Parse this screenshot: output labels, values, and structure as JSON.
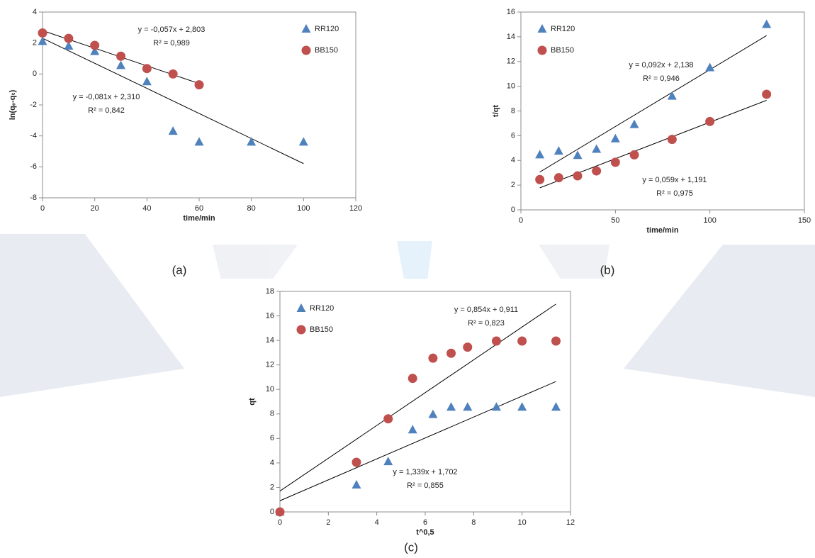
{
  "chart_data": [
    {
      "type": "scatter",
      "caption": "(a)",
      "x_label": "time/min",
      "y_label": "ln(qₑ-qₜ)",
      "xlim": [
        0,
        120
      ],
      "xticks": [
        0,
        20,
        40,
        60,
        80,
        100,
        120
      ],
      "ylim": [
        -8,
        4
      ],
      "yticks": [
        -8,
        -6,
        -4,
        -2,
        0,
        2,
        4
      ],
      "legend": "upper right",
      "series": [
        {
          "name": "RR120",
          "color": "#4f81bd",
          "marker": "triangle",
          "x": [
            0,
            10,
            20,
            30,
            40,
            50,
            60,
            80,
            100
          ],
          "values": [
            2.1,
            1.8,
            1.45,
            0.55,
            -0.5,
            -3.7,
            -4.4,
            -4.4,
            -4.4
          ],
          "trendline": {
            "slope": -0.081,
            "intercept": 2.31,
            "equation": "y = -0,081x + 2,310",
            "r2": "R² = 0,842"
          }
        },
        {
          "name": "BB150",
          "color": "#c0504d",
          "marker": "circle",
          "x": [
            0,
            10,
            20,
            30,
            40,
            50,
            60
          ],
          "values": [
            2.65,
            2.3,
            1.85,
            1.15,
            0.35,
            0.0,
            -0.7
          ],
          "trendline": {
            "slope": -0.057,
            "intercept": 2.803,
            "equation": "y = -0,057x + 2,803",
            "r2": "R² = 0,989"
          }
        }
      ]
    },
    {
      "type": "scatter",
      "caption": "(b)",
      "x_label": "time/min",
      "y_label": "t/qt",
      "xlim": [
        0,
        150
      ],
      "xticks": [
        0,
        50,
        100,
        150
      ],
      "ylim": [
        0,
        16
      ],
      "yticks": [
        0,
        2,
        4,
        6,
        8,
        10,
        12,
        14,
        16
      ],
      "legend": "upper left",
      "series": [
        {
          "name": "RR120",
          "color": "#4f81bd",
          "marker": "triangle",
          "x": [
            10,
            20,
            30,
            40,
            50,
            60,
            80,
            100,
            130
          ],
          "values": [
            4.45,
            4.75,
            4.4,
            4.9,
            5.75,
            6.9,
            9.2,
            11.5,
            15.0
          ],
          "trendline": {
            "slope": 0.092,
            "intercept": 2.138,
            "equation": "y = 0,092x + 2,138",
            "r2": "R² = 0,946"
          }
        },
        {
          "name": "BB150",
          "color": "#c0504d",
          "marker": "circle",
          "x": [
            10,
            20,
            30,
            40,
            50,
            60,
            80,
            100,
            130
          ],
          "values": [
            2.45,
            2.6,
            2.75,
            3.15,
            3.85,
            4.45,
            5.7,
            7.15,
            9.35
          ],
          "trendline": {
            "slope": 0.059,
            "intercept": 1.191,
            "equation": "y = 0,059x + 1,191",
            "r2": "R² = 0,975"
          }
        }
      ]
    },
    {
      "type": "scatter",
      "caption": "(c)",
      "x_label": "t^0,5",
      "y_label": "qt",
      "xlim": [
        0,
        12
      ],
      "xticks": [
        0,
        2,
        4,
        6,
        8,
        10,
        12
      ],
      "ylim": [
        0,
        18
      ],
      "yticks": [
        0,
        2,
        4,
        6,
        8,
        10,
        12,
        14,
        16,
        18
      ],
      "legend": "upper left",
      "series": [
        {
          "name": "RR120",
          "color": "#4f81bd",
          "marker": "triangle",
          "x": [
            0,
            3.16,
            4.47,
            5.48,
            6.32,
            7.07,
            7.75,
            8.94,
            10,
            11.4
          ],
          "values": [
            0,
            2.2,
            4.1,
            6.7,
            7.95,
            8.55,
            8.55,
            8.55,
            8.55,
            8.55
          ],
          "trendline": {
            "slope": 0.854,
            "intercept": 0.911,
            "equation": "y = 0,854x + 0,911",
            "r2": "R² = 0,823"
          }
        },
        {
          "name": "BB150",
          "color": "#c0504d",
          "marker": "circle",
          "x": [
            0,
            3.16,
            4.47,
            5.48,
            6.32,
            7.07,
            7.75,
            8.94,
            10,
            11.4
          ],
          "values": [
            0,
            4.05,
            7.6,
            10.9,
            12.55,
            12.95,
            13.45,
            13.95,
            13.95,
            13.95
          ],
          "trendline": {
            "slope": 1.339,
            "intercept": 1.702,
            "equation": "y = 1,339x + 1,702",
            "r2": "R² = 0,855"
          }
        }
      ]
    }
  ]
}
